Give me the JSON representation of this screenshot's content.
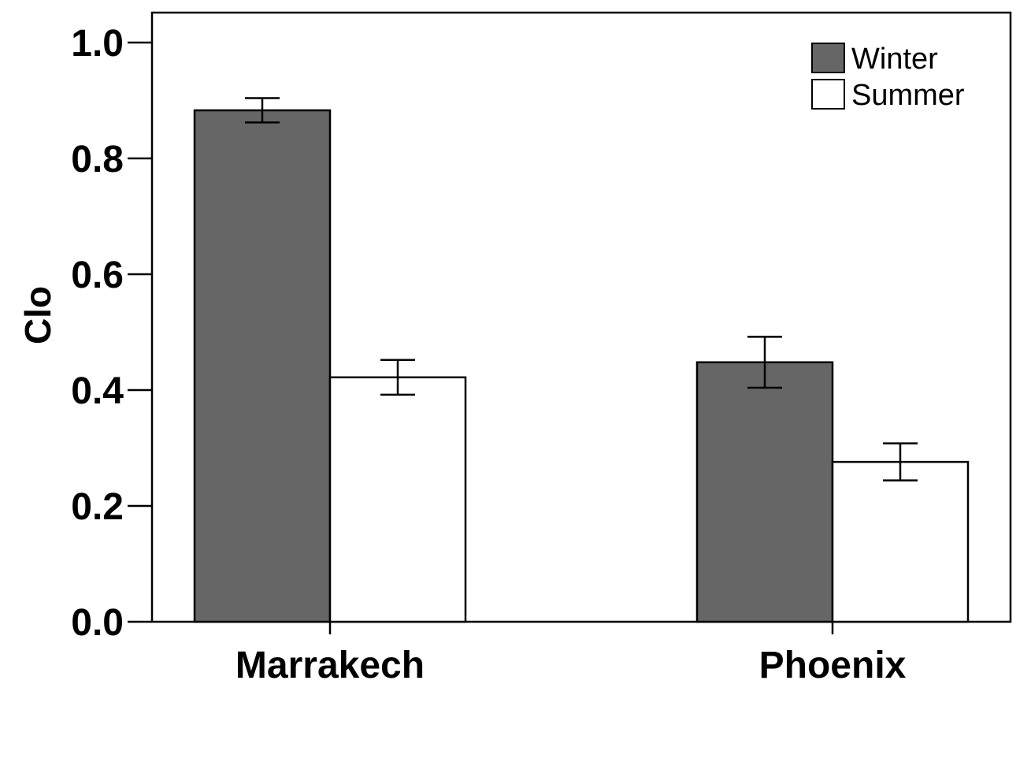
{
  "chart_data": {
    "type": "bar",
    "title": "",
    "xlabel": "",
    "ylabel": "Clo",
    "categories": [
      "Marrakech",
      "Phoenix"
    ],
    "ylim": [
      0,
      1.05
    ],
    "yticks": [
      0.0,
      0.2,
      0.4,
      0.6,
      0.8,
      1.0
    ],
    "ytick_labels": [
      "0.0",
      "0.2",
      "0.4",
      "0.6",
      "0.8",
      "1.0"
    ],
    "error_bars": true,
    "legend_position": "top-right",
    "grid": false,
    "series": [
      {
        "name": "Winter",
        "color": "#666666",
        "values": [
          0.883,
          0.448
        ],
        "errors": [
          0.021,
          0.044
        ]
      },
      {
        "name": "Summer",
        "color": "#ffffff",
        "values": [
          0.422,
          0.276
        ],
        "errors": [
          0.03,
          0.032
        ]
      }
    ]
  }
}
